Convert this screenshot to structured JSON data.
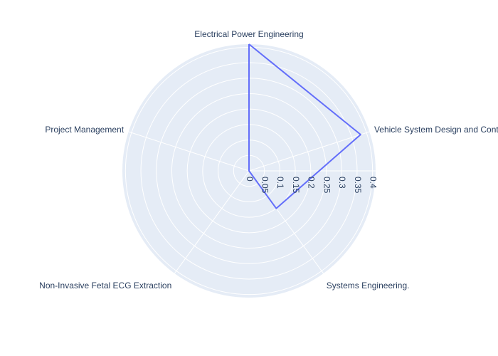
{
  "chart_data": {
    "type": "radar",
    "title": "",
    "categories": [
      "Electrical Power Engineering",
      "Vehicle System Design and Control",
      "Systems Engineering.",
      "Non-Invasive Fetal ECG Extraction",
      "Project Management"
    ],
    "series": [
      {
        "values": [
          0.41,
          0.38,
          0.15,
          0.0,
          0.0
        ]
      }
    ],
    "radial_ticks": [
      "0",
      "0.05",
      "0.1",
      "0.15",
      "0.2",
      "0.25",
      "0.3",
      "0.35",
      "0.4"
    ],
    "radial_range": [
      0,
      0.41
    ],
    "grid": true,
    "colors": {
      "background": "#e5ecf6",
      "grid": "#ffffff",
      "line": "#636efa",
      "text": "#2a3f5f"
    }
  }
}
